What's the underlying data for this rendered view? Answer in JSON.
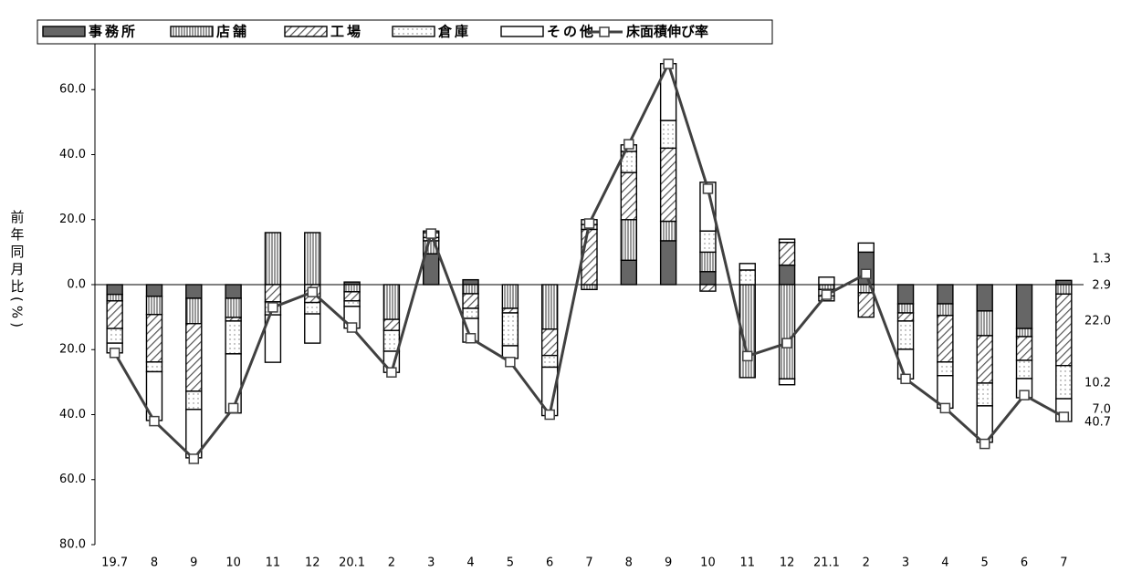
{
  "chart_data": {
    "type": "stacked-bar-line",
    "y_label": "前年同月比(%)",
    "categories": [
      "19.7",
      "8",
      "9",
      "10",
      "11",
      "12",
      "20.1",
      "2",
      "3",
      "4",
      "5",
      "6",
      "7",
      "8",
      "9",
      "10",
      "11",
      "12",
      "21.1",
      "2",
      "3",
      "4",
      "5",
      "6",
      "7"
    ],
    "series": [
      {
        "name": "事務所",
        "color": "#666666",
        "fill": "solid",
        "values": [
          -3,
          -3.6,
          -4.2,
          -4.2,
          0,
          0,
          0.8,
          0,
          9.5,
          1.5,
          0,
          0,
          0,
          7.5,
          13.5,
          4,
          0,
          6,
          0,
          10,
          -5.9,
          -5.9,
          -8.1,
          -13.5,
          1.3
        ]
      },
      {
        "name": "店舗",
        "color": "#555555",
        "fill": "vertical",
        "values": [
          -2,
          -5.6,
          -7.8,
          -5.9,
          16,
          16,
          -2.2,
          -10.7,
          4,
          -2.8,
          -7.3,
          -13.7,
          -1.5,
          12.5,
          6,
          6,
          -28.6,
          -29,
          -1.5,
          -2.5,
          -2.8,
          -3.6,
          -7.6,
          -2.5,
          -2.9
        ]
      },
      {
        "name": "工場",
        "color": "#555555",
        "fill": "diagonal",
        "values": [
          -8.5,
          -14.6,
          -20.8,
          -1.1,
          -5.3,
          -5.5,
          -2.8,
          -3.4,
          1,
          -4.5,
          -1.4,
          -8.1,
          17,
          14.5,
          22.5,
          -2,
          0,
          7,
          -2,
          -7.5,
          -2.5,
          -14.3,
          -14.6,
          -7.3,
          -22
        ]
      },
      {
        "name": "倉庫",
        "color": "#777777",
        "fill": "dots",
        "values": [
          -4.5,
          -3,
          -5.6,
          -10.1,
          -4,
          -3.5,
          -1.7,
          -6.4,
          1.5,
          -3.1,
          -10.1,
          -3.6,
          1.5,
          6.5,
          8.5,
          6.5,
          4.5,
          1,
          -1.5,
          0,
          -8.7,
          -4.2,
          -7,
          -5.6,
          -10.2
        ]
      },
      {
        "name": "その他",
        "color": "#000000",
        "fill": "none",
        "values": [
          -3,
          -15,
          -14.9,
          -18.2,
          -14.6,
          -9,
          -6.7,
          -6.5,
          0.5,
          -7.3,
          -3.9,
          -14.9,
          1.5,
          2,
          17.5,
          15,
          2,
          -1.8,
          2.3,
          2.8,
          -9.1,
          -10,
          -11.2,
          -5.9,
          -7
        ]
      }
    ],
    "line": {
      "name": "床面積伸び率",
      "color": "#404040",
      "values": [
        -21,
        -42,
        -53.6,
        -38,
        -7,
        -2.3,
        -13.2,
        -27,
        15.7,
        -16.5,
        -23.8,
        -40,
        18.8,
        43.2,
        67.9,
        29.5,
        -22,
        -18,
        -3.1,
        3.3,
        -29,
        -38,
        -49,
        -34,
        -40.7
      ]
    },
    "annotations": [
      "1.3",
      "2.9",
      "22.0",
      "10.2",
      "7.0",
      "40.7"
    ],
    "ylim": [
      -80,
      75
    ],
    "yticks": [
      {
        "value": 60,
        "label": "60.0"
      },
      {
        "value": 40,
        "label": "40.0"
      },
      {
        "value": 20,
        "label": "20.0"
      },
      {
        "value": 0,
        "label": "0.0"
      },
      {
        "value": -20,
        "label": "20.0"
      },
      {
        "value": -40,
        "label": "40.0"
      },
      {
        "value": -60,
        "label": "60.0"
      },
      {
        "value": -80,
        "label": "80.0"
      }
    ],
    "legend": "top-left"
  }
}
